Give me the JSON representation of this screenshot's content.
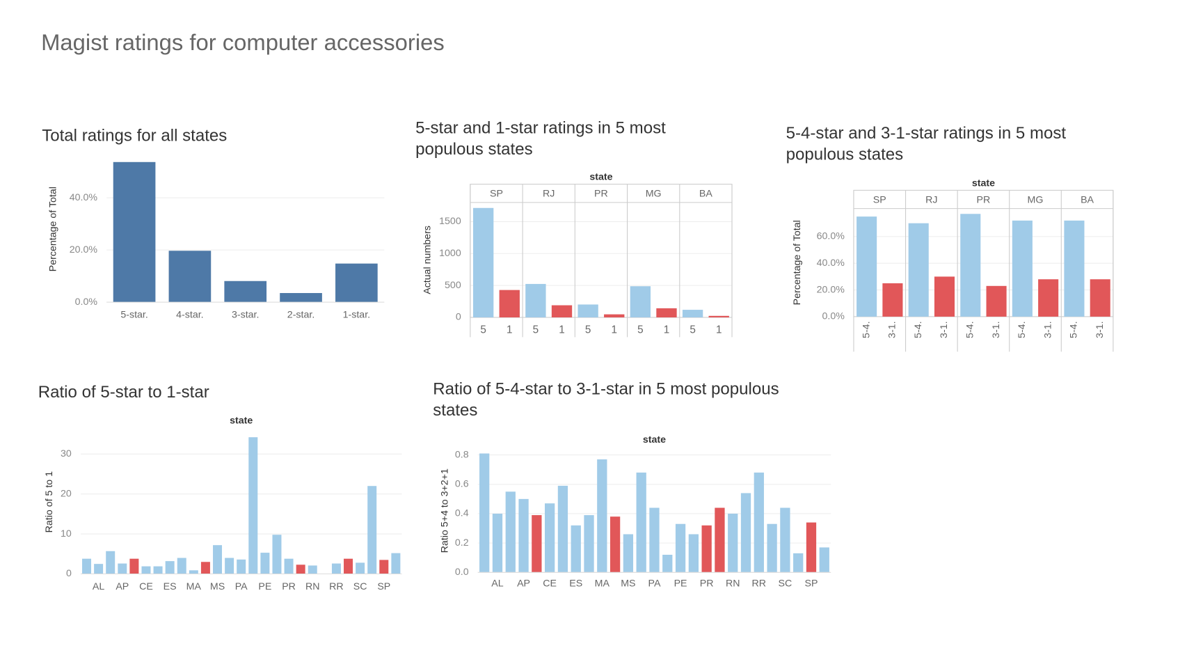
{
  "title": "Magist ratings for computer accessories",
  "chart_data": [
    {
      "type": "bar",
      "title": "Total ratings for all states",
      "y_label": "Percentage of Total",
      "categories": [
        "5-star.",
        "4-star.",
        "3-star.",
        "2-star.",
        "1-star."
      ],
      "values": [
        53.7,
        19.7,
        8.1,
        3.5,
        14.8
      ],
      "color": "#4e79a7",
      "ylim": [
        0,
        56
      ],
      "yticks": [
        {
          "value": 0,
          "label": "0.0%"
        },
        {
          "value": 20,
          "label": "20.0%"
        },
        {
          "value": 40,
          "label": "40.0%"
        }
      ],
      "grid": true
    },
    {
      "type": "bar",
      "title": "5-star and 1-star ratings in 5 most populous states",
      "y_label": "Actual numbers",
      "column_label": "state",
      "facets": [
        "SP",
        "RJ",
        "PR",
        "MG",
        "BA"
      ],
      "series": [
        {
          "name": "5",
          "color": "#a0cbe8",
          "values": [
            1714,
            524,
            202,
            488,
            119
          ]
        },
        {
          "name": "1",
          "color": "#e15759",
          "values": [
            429,
            190,
            48,
            143,
            24
          ]
        }
      ],
      "ylim": [
        0,
        1800
      ],
      "yticks": [
        0,
        500,
        1000,
        1500
      ],
      "grid": true
    },
    {
      "type": "bar",
      "title": "5-4-star and 3-1-star ratings in 5 most populous states",
      "y_label": "Percentage of Total",
      "column_label": "state",
      "facets": [
        "SP",
        "RJ",
        "PR",
        "MG",
        "BA"
      ],
      "series": [
        {
          "name": "5-4.",
          "color": "#a0cbe8",
          "values": [
            75,
            70,
            77,
            72,
            72
          ]
        },
        {
          "name": "3-1.",
          "color": "#e15759",
          "values": [
            25,
            30,
            23,
            28,
            28
          ]
        }
      ],
      "ylim": [
        0,
        81
      ],
      "yticks": [
        {
          "value": 0,
          "label": "0.0%"
        },
        {
          "value": 20,
          "label": "20.0%"
        },
        {
          "value": 40,
          "label": "40.0%"
        },
        {
          "value": 60,
          "label": "60.0%"
        }
      ],
      "grid": true
    },
    {
      "type": "bar",
      "title": "Ratio of 5-star to 1-star",
      "y_label": "Ratio of 5 to 1",
      "column_label": "state",
      "categories": [
        null,
        "AL",
        null,
        "AP",
        null,
        "CE",
        null,
        "ES",
        null,
        "MA",
        null,
        "MS",
        null,
        "PA",
        null,
        "PE",
        null,
        "PR",
        null,
        "RN",
        null,
        "RR",
        null,
        "SC",
        null,
        "SP",
        null
      ],
      "values": [
        3.8,
        2.5,
        5.7,
        2.6,
        3.8,
        1.9,
        1.9,
        3.2,
        4.0,
        0.9,
        3.0,
        7.2,
        4.0,
        3.6,
        34.2,
        5.3,
        9.8,
        3.8,
        2.3,
        2.1,
        null,
        2.6,
        3.8,
        2.8,
        22,
        3.5,
        5.2
      ],
      "colors": [
        "#a0cbe8",
        "#a0cbe8",
        "#a0cbe8",
        "#a0cbe8",
        "#e15759",
        "#a0cbe8",
        "#a0cbe8",
        "#a0cbe8",
        "#a0cbe8",
        "#a0cbe8",
        "#e15759",
        "#a0cbe8",
        "#a0cbe8",
        "#a0cbe8",
        "#a0cbe8",
        "#a0cbe8",
        "#a0cbe8",
        "#a0cbe8",
        "#e15759",
        "#a0cbe8",
        "#a0cbe8",
        "#a0cbe8",
        "#e15759",
        "#a0cbe8",
        "#a0cbe8",
        "#e15759",
        "#a0cbe8"
      ],
      "ylim": [
        0,
        36
      ],
      "yticks": [
        0,
        10,
        20,
        30
      ],
      "grid": true
    },
    {
      "type": "bar",
      "title": "Ratio of 5-4-star to 3-1-star in 5 most populous states",
      "y_label": "Ratio 5+4 to 3+2+1",
      "column_label": "state",
      "categories": [
        null,
        "AL",
        null,
        "AP",
        null,
        "CE",
        null,
        "ES",
        null,
        "MA",
        null,
        "MS",
        null,
        "PA",
        null,
        "PE",
        null,
        "PR",
        null,
        "RN",
        null,
        "RR",
        null,
        "SC",
        null,
        "SP",
        null
      ],
      "values": [
        0.81,
        0.4,
        0.55,
        0.5,
        0.39,
        0.47,
        0.59,
        0.32,
        0.39,
        0.77,
        0.38,
        0.26,
        0.68,
        0.44,
        0.12,
        0.33,
        0.26,
        0.32,
        0.44,
        0.4,
        0.54,
        0.68,
        0.33,
        0.44,
        0.13,
        0.34,
        0.17
      ],
      "colors": [
        "#a0cbe8",
        "#a0cbe8",
        "#a0cbe8",
        "#a0cbe8",
        "#e15759",
        "#a0cbe8",
        "#a0cbe8",
        "#a0cbe8",
        "#a0cbe8",
        "#a0cbe8",
        "#e15759",
        "#a0cbe8",
        "#a0cbe8",
        "#a0cbe8",
        "#a0cbe8",
        "#a0cbe8",
        "#a0cbe8",
        "#e15759",
        "#e15759",
        "#a0cbe8",
        "#a0cbe8",
        "#a0cbe8",
        "#a0cbe8",
        "#a0cbe8",
        "#a0cbe8",
        "#e15759",
        "#a0cbe8"
      ],
      "ylim": [
        0,
        0.84
      ],
      "yticks": [
        {
          "value": 0,
          "label": "0.0"
        },
        0.2,
        0.4,
        0.6,
        0.8
      ],
      "grid": true
    }
  ]
}
